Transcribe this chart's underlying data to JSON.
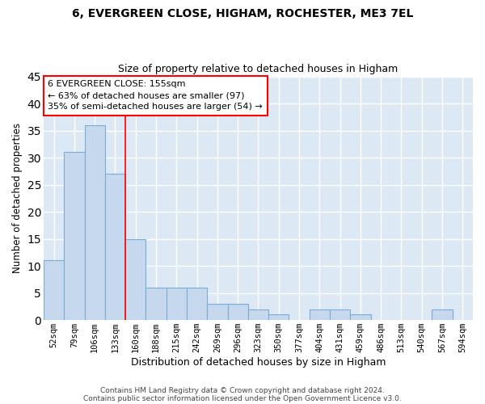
{
  "title1": "6, EVERGREEN CLOSE, HIGHAM, ROCHESTER, ME3 7EL",
  "title2": "Size of property relative to detached houses in Higham",
  "xlabel": "Distribution of detached houses by size in Higham",
  "ylabel": "Number of detached properties",
  "categories": [
    "52sqm",
    "79sqm",
    "106sqm",
    "133sqm",
    "160sqm",
    "188sqm",
    "215sqm",
    "242sqm",
    "269sqm",
    "296sqm",
    "323sqm",
    "350sqm",
    "377sqm",
    "404sqm",
    "431sqm",
    "459sqm",
    "486sqm",
    "513sqm",
    "540sqm",
    "567sqm",
    "594sqm"
  ],
  "values": [
    11,
    31,
    36,
    27,
    15,
    6,
    6,
    6,
    3,
    3,
    2,
    1,
    0,
    2,
    2,
    1,
    0,
    0,
    0,
    2,
    0
  ],
  "bar_color": "#c5d8ee",
  "bar_edge_color": "#7aadd4",
  "plot_bg_color": "#dde8f5",
  "figure_bg_color": "#ffffff",
  "grid_color": "#ffffff",
  "redline_x": 4.0,
  "annotation_text": "6 EVERGREEN CLOSE: 155sqm\n← 63% of detached houses are smaller (97)\n35% of semi-detached houses are larger (54) →",
  "ylim": [
    0,
    45
  ],
  "yticks": [
    0,
    5,
    10,
    15,
    20,
    25,
    30,
    35,
    40,
    45
  ],
  "footer1": "Contains HM Land Registry data © Crown copyright and database right 2024.",
  "footer2": "Contains public sector information licensed under the Open Government Licence v3.0."
}
